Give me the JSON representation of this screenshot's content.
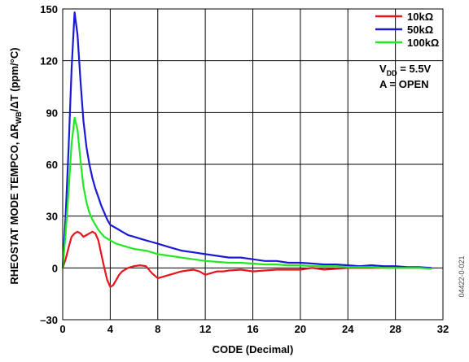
{
  "chart_data": {
    "type": "line",
    "xlabel": "CODE (Decimal)",
    "ylabel": "RHEOSTAT MODE TEMPCO, ΔR_WB/ΔT (ppm/°C)",
    "xlim": [
      0,
      32
    ],
    "ylim": [
      -30,
      150
    ],
    "xticks": [
      0,
      4,
      8,
      12,
      16,
      20,
      24,
      28,
      32
    ],
    "yticks": [
      -30,
      0,
      30,
      60,
      90,
      120,
      150
    ],
    "grid": true,
    "legend_position": "top-right",
    "series": [
      {
        "name": "10kΩ",
        "color": "#e8141c",
        "x": [
          0,
          0.25,
          0.5,
          0.75,
          1,
          1.25,
          1.5,
          1.75,
          2,
          2.25,
          2.5,
          2.75,
          3,
          3.25,
          3.5,
          3.75,
          4,
          4.25,
          4.5,
          4.75,
          5,
          5.5,
          6,
          6.5,
          7,
          7.5,
          8,
          8.5,
          9,
          9.5,
          10,
          10.5,
          11,
          11.5,
          12,
          12.5,
          13,
          13.5,
          14,
          15,
          16,
          17,
          18,
          19,
          20,
          21,
          22,
          23,
          24,
          25,
          26,
          27,
          28,
          29,
          30,
          31
        ],
        "values": [
          0,
          5,
          12,
          18,
          20,
          21,
          20,
          18,
          19,
          20,
          21,
          20,
          16,
          8,
          0,
          -7,
          -11,
          -10,
          -7,
          -4,
          -2,
          0,
          1,
          1.5,
          1,
          -3,
          -6,
          -5,
          -4,
          -3,
          -2,
          -1.5,
          -1,
          -2,
          -4,
          -3,
          -2,
          -2,
          -1.5,
          -1,
          -2,
          -1.5,
          -1,
          -1,
          -1,
          0,
          -1,
          -0.5,
          0,
          0,
          0,
          0,
          0,
          0,
          0,
          0
        ]
      },
      {
        "name": "50kΩ",
        "color": "#1a1ad4",
        "x": [
          0,
          0.25,
          0.5,
          0.75,
          1,
          1.25,
          1.5,
          1.75,
          2,
          2.25,
          2.5,
          2.75,
          3,
          3.25,
          3.5,
          3.75,
          4,
          4.5,
          5,
          5.5,
          6,
          6.5,
          7,
          7.5,
          8,
          9,
          10,
          11,
          12,
          13,
          14,
          15,
          16,
          17,
          18,
          19,
          20,
          21,
          22,
          23,
          24,
          25,
          26,
          27,
          28,
          29,
          30,
          31
        ],
        "values": [
          0,
          30,
          70,
          115,
          148,
          135,
          108,
          85,
          70,
          60,
          52,
          46,
          41,
          36,
          32,
          28,
          25,
          23,
          21,
          19,
          18,
          17,
          16,
          15,
          14,
          12,
          10,
          9,
          8,
          7,
          6,
          6,
          5,
          4,
          4,
          3,
          3,
          2.5,
          2,
          2,
          1.5,
          1,
          1.5,
          1,
          1,
          0.5,
          0.5,
          0
        ]
      },
      {
        "name": "100kΩ",
        "color": "#22e822",
        "x": [
          0,
          0.25,
          0.5,
          0.75,
          1,
          1.25,
          1.5,
          1.75,
          2,
          2.25,
          2.5,
          2.75,
          3,
          3.25,
          3.5,
          3.75,
          4,
          4.5,
          5,
          5.5,
          6,
          6.5,
          7,
          7.5,
          8,
          9,
          10,
          11,
          12,
          13,
          14,
          15,
          16,
          17,
          18,
          19,
          20,
          21,
          22,
          23,
          24,
          25,
          26,
          27,
          28,
          29,
          30,
          31
        ],
        "values": [
          0,
          20,
          45,
          72,
          87,
          80,
          62,
          47,
          38,
          32,
          28,
          25,
          22,
          20,
          18,
          17,
          16,
          14,
          13,
          12,
          11,
          10.5,
          10,
          9,
          8,
          7,
          6,
          5,
          4,
          3.5,
          3,
          3,
          2.5,
          2,
          2,
          1.5,
          1.5,
          1,
          1,
          1,
          0.5,
          0.5,
          0.5,
          0,
          0,
          0,
          0,
          -0.5
        ]
      }
    ],
    "annotations": [
      "V_DD = 5.5V",
      "A = OPEN"
    ]
  },
  "legend": {
    "entries": [
      "10kΩ",
      "50kΩ",
      "100kΩ"
    ],
    "note_line1_main": "V",
    "note_line1_sub": "DD",
    "note_line1_rest": " = 5.5V",
    "note_line2": "A = OPEN"
  },
  "ylabel_parts": {
    "main": "RHEOSTAT MODE TEMPCO, ΔR",
    "sub": "WB",
    "rest": "/ΔT (ppm/°C)"
  },
  "figure_code": "04422-0-021"
}
